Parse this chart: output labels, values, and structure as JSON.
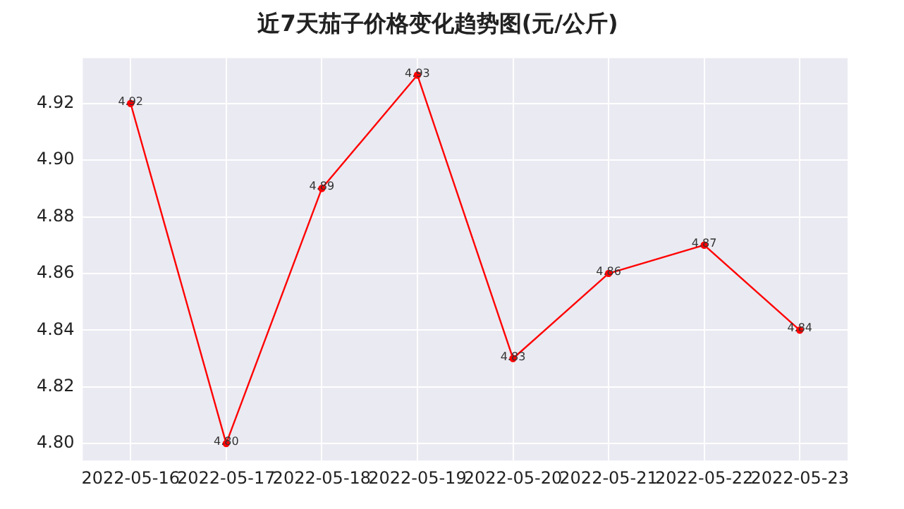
{
  "chart_data": {
    "type": "line",
    "title": "近7天茄子价格变化趋势图(元/公斤)",
    "categories": [
      "2022-05-16",
      "2022-05-17",
      "2022-05-18",
      "2022-05-19",
      "2022-05-20",
      "2022-05-21",
      "2022-05-22",
      "2022-05-23"
    ],
    "series": [
      {
        "color": "#ff0000",
        "values": [
          4.92,
          4.8,
          4.89,
          4.93,
          4.83,
          4.86,
          4.87,
          4.84
        ],
        "value_labels": [
          "4.92",
          "4.80",
          "4.89",
          "4.93",
          "4.83",
          "4.86",
          "4.87",
          "4.84"
        ]
      }
    ],
    "ylim": [
      4.794,
      4.936
    ],
    "yticks": [
      {
        "value": 4.8,
        "label": "4.80"
      },
      {
        "value": 4.82,
        "label": "4.82"
      },
      {
        "value": 4.84,
        "label": "4.84"
      },
      {
        "value": 4.86,
        "label": "4.86"
      },
      {
        "value": 4.88,
        "label": "4.88"
      },
      {
        "value": 4.9,
        "label": "4.90"
      },
      {
        "value": 4.92,
        "label": "4.92"
      }
    ],
    "grid": true,
    "marker": "circle",
    "line_style": "solid"
  }
}
